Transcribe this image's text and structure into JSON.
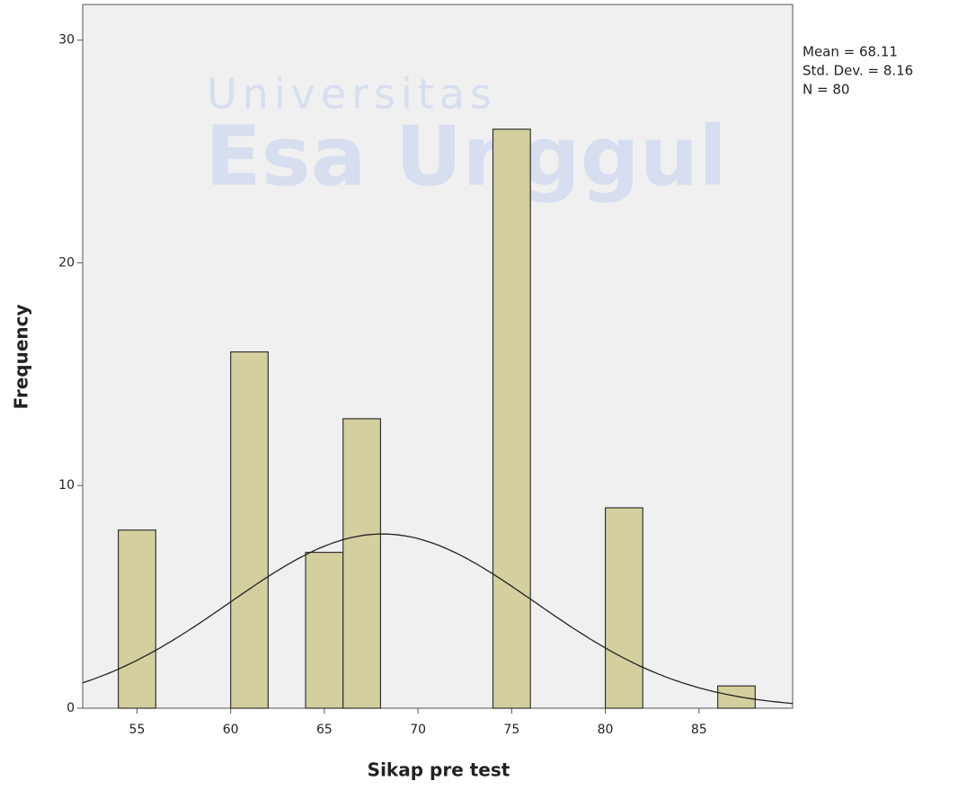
{
  "chart_data": {
    "type": "histogram",
    "watermark": [
      "Universitas",
      "Esa Unggul"
    ],
    "xlabel": "Sikap pre test",
    "ylabel": "Frequency",
    "bins": [
      54,
      56,
      58,
      60,
      62,
      64,
      66,
      68,
      70,
      72,
      74,
      76,
      78,
      80,
      82,
      84,
      86,
      88
    ],
    "values": [
      8,
      0,
      0,
      16,
      0,
      7,
      13,
      0,
      0,
      0,
      26,
      0,
      0,
      9,
      0,
      0,
      1
    ],
    "color": "#d4cf9e",
    "xlim": [
      52.1,
      90
    ],
    "xticks": [
      55,
      60,
      65,
      70,
      75,
      80,
      85
    ],
    "ylim": [
      0,
      31.6
    ],
    "yticks": [
      0,
      10,
      20,
      30
    ],
    "stats": [
      {
        "name": "Mean",
        "value": 68.11,
        "label": "Mean = 68.11"
      },
      {
        "name": "Std. Dev.",
        "value": 8.16,
        "label": "Std. Dev. = 8.16"
      },
      {
        "name": "N",
        "value": 80,
        "label": "N = 80"
      }
    ]
  }
}
